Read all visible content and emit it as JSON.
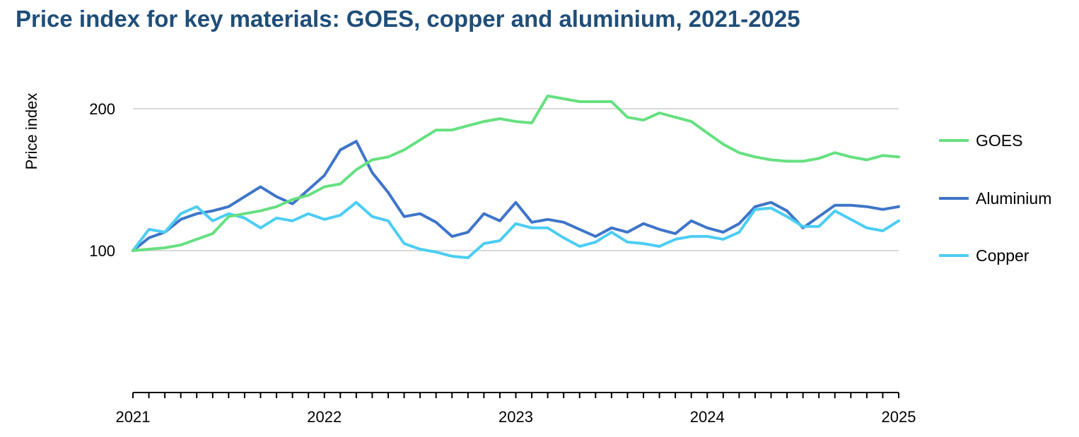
{
  "chart_data": {
    "type": "line",
    "title": "Price index for key materials: GOES, copper and aluminium, 2021-2025",
    "ylabel": "Price index",
    "xlabel": "",
    "x_tick_labels": [
      "2021",
      "2022",
      "2023",
      "2024",
      "2025"
    ],
    "y_tick_labels": [
      "100",
      "200"
    ],
    "y_ticks": [
      100,
      200
    ],
    "ylim": [
      0,
      220
    ],
    "xlim": [
      "2021-01",
      "2025-01"
    ],
    "grid": "horizontal",
    "legend_position": "right",
    "x": [
      "2021-01",
      "2021-02",
      "2021-03",
      "2021-04",
      "2021-05",
      "2021-06",
      "2021-07",
      "2021-08",
      "2021-09",
      "2021-10",
      "2021-11",
      "2021-12",
      "2022-01",
      "2022-02",
      "2022-03",
      "2022-04",
      "2022-05",
      "2022-06",
      "2022-07",
      "2022-08",
      "2022-09",
      "2022-10",
      "2022-11",
      "2022-12",
      "2023-01",
      "2023-02",
      "2023-03",
      "2023-04",
      "2023-05",
      "2023-06",
      "2023-07",
      "2023-08",
      "2023-09",
      "2023-10",
      "2023-11",
      "2023-12",
      "2024-01",
      "2024-02",
      "2024-03",
      "2024-04",
      "2024-05",
      "2024-06",
      "2024-07",
      "2024-08",
      "2024-09",
      "2024-10",
      "2024-11",
      "2024-12",
      "2025-01"
    ],
    "series": [
      {
        "name": "GOES",
        "color": "#66e080",
        "values": [
          100,
          101,
          102,
          104,
          108,
          112,
          124,
          126,
          128,
          131,
          136,
          139,
          145,
          147,
          157,
          164,
          166,
          171,
          178,
          185,
          185,
          188,
          191,
          193,
          191,
          190,
          209,
          207,
          205,
          205,
          205,
          194,
          192,
          197,
          194,
          191,
          183,
          175,
          169,
          166,
          164,
          163,
          163,
          165,
          169,
          166,
          164,
          167,
          166
        ]
      },
      {
        "name": "Aluminium",
        "color": "#3e75c9",
        "values": [
          100,
          109,
          113,
          122,
          126,
          128,
          131,
          138,
          145,
          138,
          133,
          143,
          153,
          171,
          177,
          155,
          141,
          124,
          126,
          120,
          110,
          113,
          126,
          121,
          134,
          120,
          122,
          120,
          115,
          110,
          116,
          113,
          119,
          115,
          112,
          121,
          116,
          113,
          119,
          131,
          134,
          128,
          116,
          124,
          132,
          132,
          131,
          129,
          131
        ]
      },
      {
        "name": "Copper",
        "color": "#4ccdf4",
        "values": [
          100,
          115,
          113,
          126,
          131,
          121,
          126,
          123,
          116,
          123,
          121,
          126,
          122,
          125,
          134,
          124,
          121,
          105,
          101,
          99,
          96,
          95,
          105,
          107,
          119,
          116,
          116,
          109,
          103,
          106,
          113,
          106,
          105,
          103,
          108,
          110,
          110,
          108,
          113,
          129,
          130,
          124,
          117,
          117,
          128,
          122,
          116,
          114,
          121
        ]
      }
    ]
  }
}
